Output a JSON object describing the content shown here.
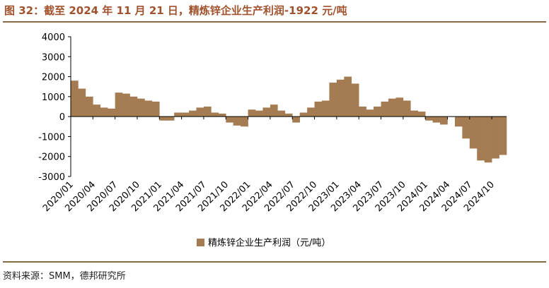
{
  "title": "图 32：截至 2024 年 11 月 21 日，精炼锌企业生产利润-1922 元/吨",
  "source": "资料来源：SMM，德邦研究所",
  "colors": {
    "bar": "#a57c52",
    "title": "#a0522d",
    "rule": "#8b6a4a",
    "axis": "#000000"
  },
  "chart_data": {
    "type": "area",
    "ylim": [
      -3000,
      4000
    ],
    "yticks": [
      "4000",
      "3000",
      "2000",
      "1000",
      "0",
      "-1000",
      "-2000",
      "-3000"
    ],
    "ytick_values": [
      4000,
      3000,
      2000,
      1000,
      0,
      -1000,
      -2000,
      -3000
    ],
    "xticks": [
      "2020/01",
      "2020/04",
      "2020/07",
      "2020/10",
      "2021/01",
      "2021/04",
      "2021/07",
      "2021/10",
      "2022/01",
      "2022/04",
      "2022/07",
      "2022/10",
      "2023/01",
      "2023/04",
      "2023/07",
      "2023/10",
      "2024/01",
      "2024/04",
      "2024/07",
      "2024/10"
    ],
    "legend": "精炼锌企业生产利润（元/吨）",
    "series": [
      {
        "name": "精炼锌企业生产利润（元/吨）",
        "x": [
          "2020/01",
          "2020/02",
          "2020/03",
          "2020/04",
          "2020/05",
          "2020/06",
          "2020/07",
          "2020/08",
          "2020/09",
          "2020/10",
          "2020/11",
          "2020/12",
          "2021/01",
          "2021/02",
          "2021/03",
          "2021/04",
          "2021/05",
          "2021/06",
          "2021/07",
          "2021/08",
          "2021/09",
          "2021/10",
          "2021/11",
          "2021/12",
          "2022/01",
          "2022/02",
          "2022/03",
          "2022/04",
          "2022/05",
          "2022/06",
          "2022/07",
          "2022/08",
          "2022/09",
          "2022/10",
          "2022/11",
          "2022/12",
          "2023/01",
          "2023/02",
          "2023/03",
          "2023/04",
          "2023/05",
          "2023/06",
          "2023/07",
          "2023/08",
          "2023/09",
          "2023/10",
          "2023/11",
          "2023/12",
          "2024/01",
          "2024/02",
          "2024/03",
          "2024/04",
          "2024/05",
          "2024/06",
          "2024/07",
          "2024/08",
          "2024/09",
          "2024/10",
          "2024/11"
        ],
        "values": [
          1800,
          1400,
          1000,
          600,
          450,
          400,
          1200,
          1150,
          1000,
          900,
          800,
          750,
          -200,
          -200,
          200,
          200,
          300,
          450,
          500,
          200,
          150,
          -300,
          -450,
          -500,
          350,
          300,
          450,
          600,
          300,
          150,
          -300,
          200,
          450,
          750,
          800,
          1700,
          1850,
          2000,
          1650,
          500,
          350,
          500,
          750,
          900,
          950,
          800,
          300,
          250,
          -200,
          -300,
          -400,
          0,
          -500,
          -1100,
          -1600,
          -2200,
          -2300,
          -2100,
          -1922
        ]
      }
    ]
  }
}
